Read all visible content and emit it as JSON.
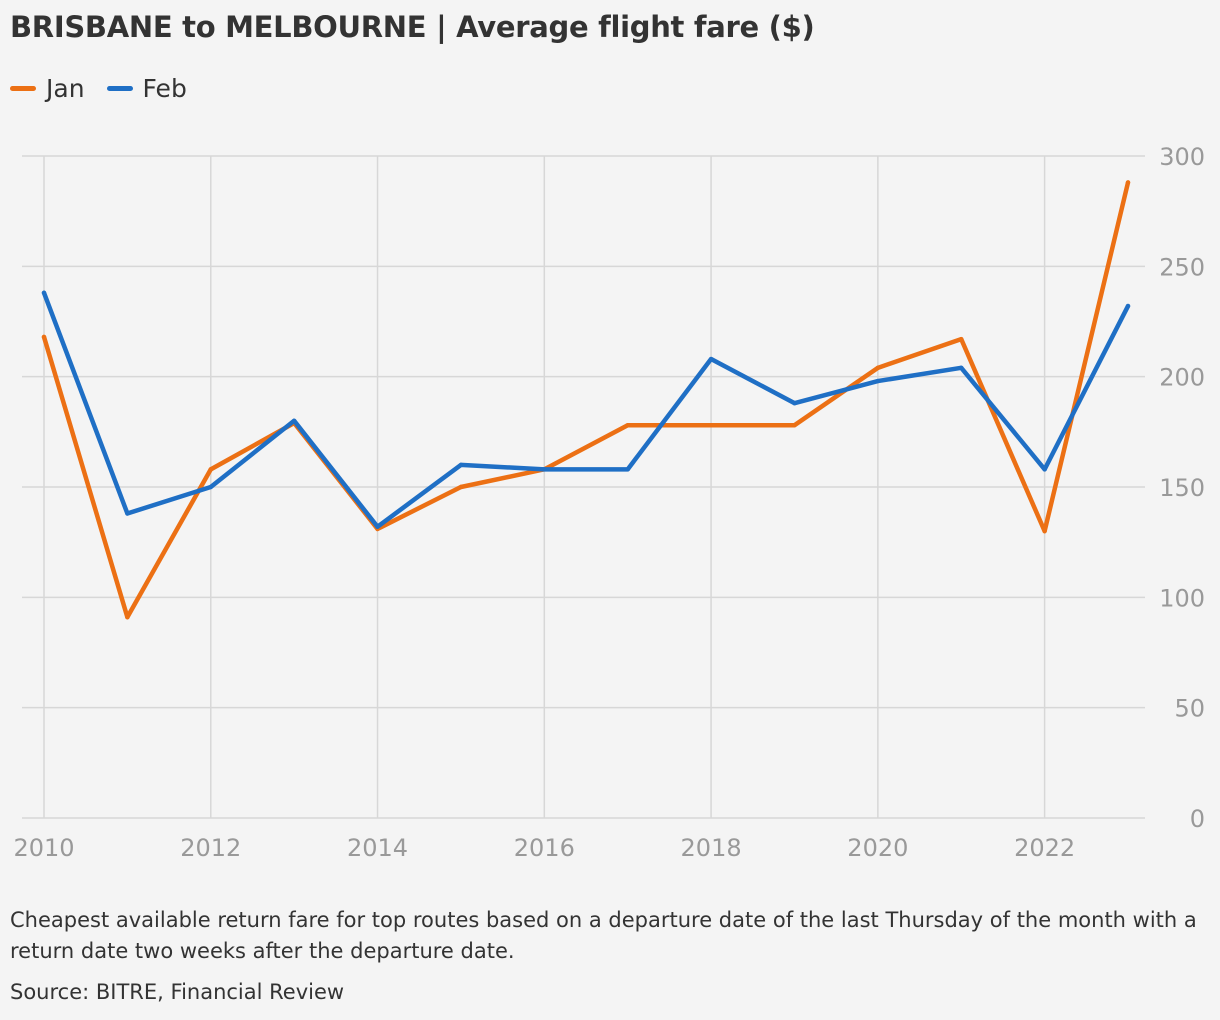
{
  "title": "BRISBANE to MELBOURNE | Average flight fare ($)",
  "footnote": "Cheapest available return fare for top routes based on a departure date of the last Thursday of the month with a return date two weeks after the departure date.",
  "source": "Source: BITRE, Financial Review",
  "colors": {
    "jan": "#ec7014",
    "feb": "#1f6fc5",
    "grid": "#d7d7d7",
    "axis_text": "#999999",
    "background": "#f4f4f4"
  },
  "chart_data": {
    "type": "line",
    "title": "BRISBANE to MELBOURNE | Average flight fare ($)",
    "xlabel": "",
    "ylabel": "",
    "x": [
      2010,
      2011,
      2012,
      2013,
      2014,
      2015,
      2016,
      2017,
      2018,
      2019,
      2020,
      2021,
      2022,
      2023
    ],
    "series": [
      {
        "name": "Jan",
        "color": "#ec7014",
        "values": [
          218,
          91,
          158,
          179,
          131,
          150,
          158,
          178,
          178,
          178,
          204,
          217,
          130,
          288
        ]
      },
      {
        "name": "Feb",
        "color": "#1f6fc5",
        "values": [
          238,
          138,
          150,
          180,
          132,
          160,
          158,
          158,
          208,
          188,
          198,
          204,
          158,
          232
        ]
      }
    ],
    "xlim": [
      2010,
      2023
    ],
    "ylim": [
      0,
      300
    ],
    "x_ticks": [
      "2010",
      "2012",
      "2014",
      "2016",
      "2018",
      "2020",
      "2022"
    ],
    "y_ticks": [
      "0",
      "50",
      "100",
      "150",
      "200",
      "250",
      "300"
    ],
    "y_axis_position": "right",
    "grid": true,
    "legend_position": "top-left"
  }
}
